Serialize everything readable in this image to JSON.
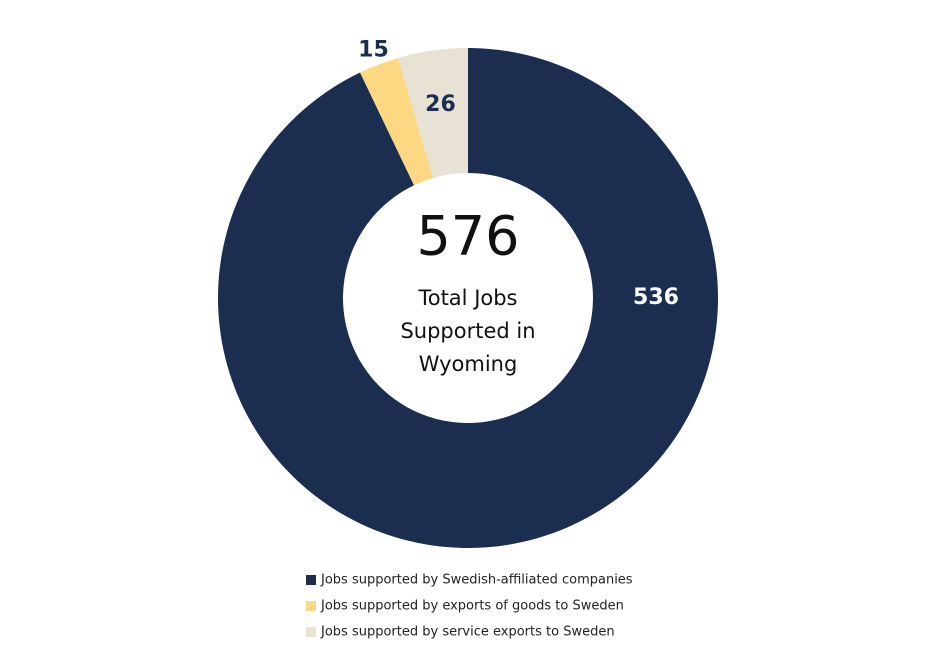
{
  "chart_data": {
    "type": "donut",
    "categories": [
      "Jobs supported by Swedish-affiliated companies",
      "Jobs supported by exports of goods to Sweden",
      "Jobs supported by service exports to Sweden"
    ],
    "values": [
      536,
      15,
      26
    ],
    "colors": [
      "#1b2e50",
      "#fdd882",
      "#e8e2d4"
    ],
    "center_value": 576,
    "center_label": "Total Jobs Supported in Wyoming"
  }
}
